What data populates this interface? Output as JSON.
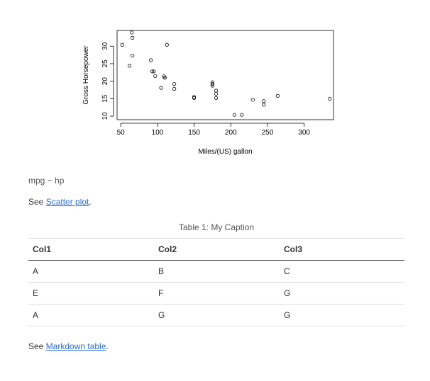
{
  "chart_data": {
    "type": "scatter",
    "xlabel": "Miles/(US) gallon",
    "ylabel": "Gross Horsepower",
    "xlim": [
      45,
      340
    ],
    "ylim": [
      9,
      34.5
    ],
    "x_ticks": [
      50,
      100,
      150,
      200,
      250,
      300
    ],
    "y_ticks": [
      10,
      15,
      20,
      25,
      30
    ],
    "grid": false,
    "points": [
      {
        "x": 52,
        "y": 30.4
      },
      {
        "x": 62,
        "y": 24.4
      },
      {
        "x": 65,
        "y": 33.9
      },
      {
        "x": 66,
        "y": 32.4
      },
      {
        "x": 66,
        "y": 27.3
      },
      {
        "x": 91,
        "y": 26.0
      },
      {
        "x": 93,
        "y": 22.8
      },
      {
        "x": 95,
        "y": 22.8
      },
      {
        "x": 97,
        "y": 21.5
      },
      {
        "x": 105,
        "y": 18.1
      },
      {
        "x": 109,
        "y": 21.4
      },
      {
        "x": 110,
        "y": 21.0
      },
      {
        "x": 110,
        "y": 21.0
      },
      {
        "x": 113,
        "y": 30.4
      },
      {
        "x": 123,
        "y": 19.2
      },
      {
        "x": 123,
        "y": 17.8
      },
      {
        "x": 150,
        "y": 15.5
      },
      {
        "x": 150,
        "y": 15.2
      },
      {
        "x": 175,
        "y": 19.7
      },
      {
        "x": 175,
        "y": 18.7
      },
      {
        "x": 175,
        "y": 19.2
      },
      {
        "x": 180,
        "y": 16.4
      },
      {
        "x": 180,
        "y": 17.3
      },
      {
        "x": 180,
        "y": 15.2
      },
      {
        "x": 205,
        "y": 10.4
      },
      {
        "x": 215,
        "y": 10.4
      },
      {
        "x": 230,
        "y": 14.7
      },
      {
        "x": 245,
        "y": 14.3
      },
      {
        "x": 245,
        "y": 13.3
      },
      {
        "x": 264,
        "y": 15.8
      },
      {
        "x": 335,
        "y": 15.0
      }
    ]
  },
  "formula": "mpg ~ hp",
  "see_scatter": {
    "prefix": "See ",
    "link": "Scatter plot",
    "suffix": "."
  },
  "table": {
    "caption": "Table 1: My Caption",
    "headers": [
      "Col1",
      "Col2",
      "Col3"
    ],
    "rows": [
      [
        "A",
        "B",
        "C"
      ],
      [
        "E",
        "F",
        "G"
      ],
      [
        "A",
        "G",
        "G"
      ]
    ]
  },
  "see_table": {
    "prefix": "See ",
    "link": "Markdown table",
    "suffix": "."
  }
}
